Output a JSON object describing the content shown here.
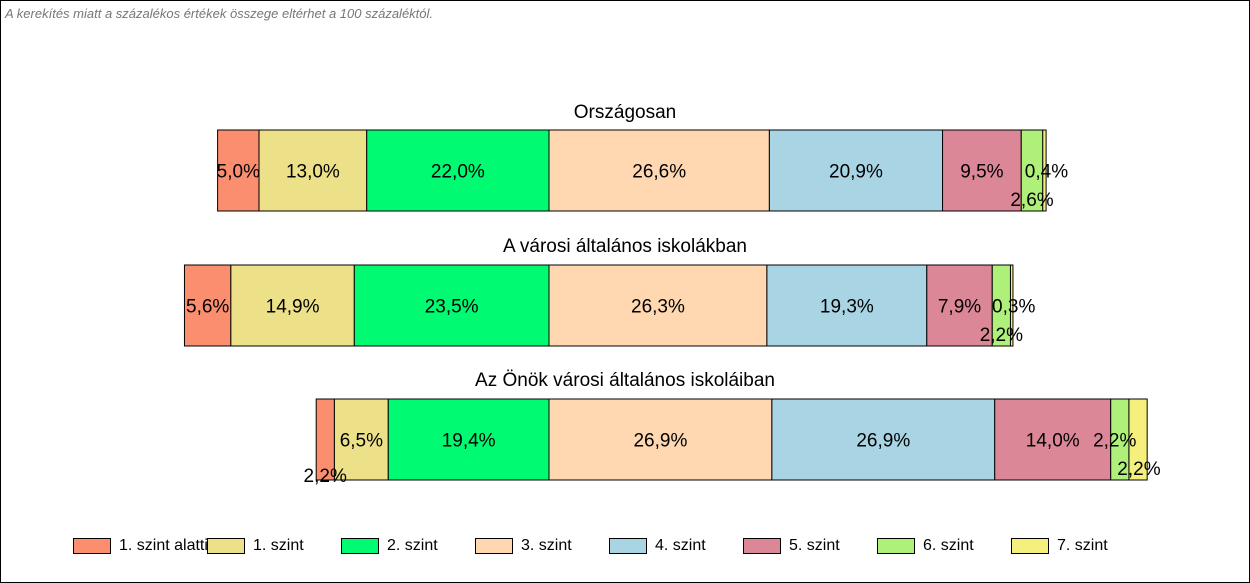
{
  "note": "A kerekítés miatt a  százalékos értékek összege eltérhet a 100 százaléktól.",
  "colors": [
    "#FA8E6E",
    "#ECE088",
    "#00FA72",
    "#FFD8B2",
    "#A8D4E4",
    "#DB8798",
    "#AEF07A",
    "#F5F07E"
  ],
  "chart_data": {
    "type": "bar",
    "orientation": "horizontal",
    "stacked": true,
    "legend_position": "bottom",
    "series_names": [
      "1. szint alatti",
      "1. szint",
      "2. szint",
      "3. szint",
      "4. szint",
      "5. szint",
      "6. szint",
      "7. szint"
    ],
    "groups": [
      {
        "title": "Országosan",
        "values": [
          5.0,
          13.0,
          22.0,
          26.6,
          20.9,
          9.5,
          2.6,
          0.4
        ],
        "labels": [
          "5,0%",
          "13,0%",
          "22,0%",
          "26,6%",
          "20,9%",
          "9,5%",
          "2,6%",
          "0,4%"
        ]
      },
      {
        "title": "A városi általános iskolákban",
        "values": [
          5.6,
          14.9,
          23.5,
          26.3,
          19.3,
          7.9,
          2.2,
          0.3
        ],
        "labels": [
          "5,6%",
          "14,9%",
          "23,5%",
          "26,3%",
          "19,3%",
          "7,9%",
          "2,2%",
          "0,3%"
        ]
      },
      {
        "title": "Az Önök városi általános iskoláiban",
        "values": [
          2.2,
          6.5,
          19.4,
          26.9,
          26.9,
          14.0,
          2.2,
          2.2
        ],
        "labels": [
          "2,2%",
          "6,5%",
          "19,4%",
          "26,9%",
          "26,9%",
          "14,0%",
          "2,2%",
          "2,2%"
        ]
      }
    ]
  }
}
